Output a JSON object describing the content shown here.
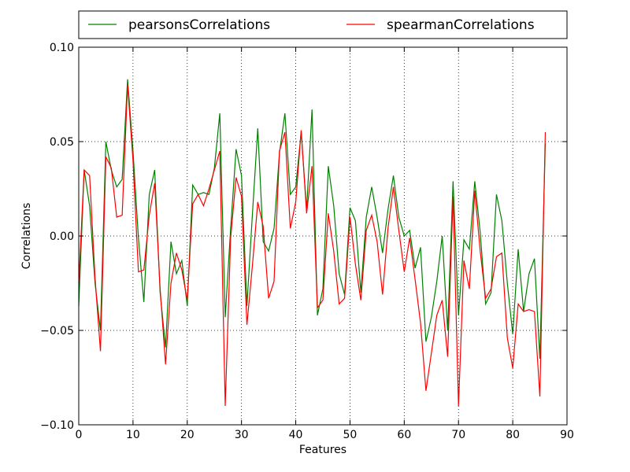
{
  "chart_data": {
    "type": "line",
    "title": "",
    "xlabel": "Features",
    "ylabel": "Correlations",
    "xlim": [
      0,
      90
    ],
    "ylim": [
      -0.1,
      0.1
    ],
    "xticks": [
      0,
      10,
      20,
      30,
      40,
      50,
      60,
      70,
      80,
      90
    ],
    "yticks": [
      -0.1,
      -0.05,
      0.0,
      0.05,
      0.1
    ],
    "xtick_labels": [
      "0",
      "10",
      "20",
      "30",
      "40",
      "50",
      "60",
      "70",
      "80",
      "90"
    ],
    "ytick_labels": [
      "−0.10",
      "−0.05",
      "0.00",
      "0.05",
      "0.10"
    ],
    "grid": true,
    "legend_position": "top, above plot",
    "series": [
      {
        "name": "pearsonsCorrelations",
        "color": "#008000",
        "values": [
          -0.037,
          0.035,
          0.016,
          -0.025,
          -0.05,
          0.05,
          0.035,
          0.026,
          0.03,
          0.083,
          0.045,
          -0.001,
          -0.035,
          0.022,
          0.035,
          -0.03,
          -0.059,
          -0.003,
          -0.02,
          -0.013,
          -0.037,
          0.027,
          0.022,
          0.023,
          0.022,
          0.036,
          0.065,
          -0.043,
          0.004,
          0.046,
          0.032,
          -0.037,
          0.011,
          0.057,
          -0.003,
          -0.008,
          0.004,
          0.044,
          0.065,
          0.022,
          0.026,
          0.055,
          0.014,
          0.067,
          -0.042,
          -0.028,
          0.037,
          0.016,
          -0.02,
          -0.031,
          0.015,
          0.008,
          -0.03,
          0.01,
          0.026,
          0.01,
          -0.009,
          0.014,
          0.032,
          0.01,
          0.0,
          0.003,
          -0.017,
          -0.006,
          -0.056,
          -0.043,
          -0.024,
          0.0,
          -0.05,
          0.029,
          -0.042,
          -0.002,
          -0.007,
          0.029,
          0.002,
          -0.036,
          -0.03,
          0.022,
          0.008,
          -0.025,
          -0.052,
          -0.007,
          -0.04,
          -0.02,
          -0.012,
          -0.065,
          0.049
        ]
      },
      {
        "name": "spearmanCorrelations",
        "color": "#ff0000",
        "values": [
          -0.025,
          0.035,
          0.032,
          -0.022,
          -0.061,
          0.042,
          0.036,
          0.01,
          0.011,
          0.08,
          0.04,
          -0.019,
          -0.018,
          0.011,
          0.028,
          -0.028,
          -0.068,
          -0.025,
          -0.009,
          -0.018,
          -0.034,
          0.017,
          0.022,
          0.016,
          0.025,
          0.035,
          0.045,
          -0.09,
          -0.001,
          0.031,
          0.021,
          -0.047,
          -0.016,
          0.018,
          0.005,
          -0.033,
          -0.024,
          0.045,
          0.055,
          0.004,
          0.018,
          0.056,
          0.012,
          0.037,
          -0.038,
          -0.034,
          0.012,
          -0.008,
          -0.036,
          -0.033,
          0.01,
          -0.015,
          -0.034,
          0.003,
          0.011,
          -0.003,
          -0.031,
          0.004,
          0.026,
          0.003,
          -0.019,
          -0.001,
          -0.023,
          -0.046,
          -0.082,
          -0.062,
          -0.042,
          -0.034,
          -0.064,
          0.021,
          -0.09,
          -0.013,
          -0.028,
          0.024,
          -0.008,
          -0.033,
          -0.028,
          -0.011,
          -0.009,
          -0.054,
          -0.07,
          -0.036,
          -0.04,
          -0.039,
          -0.04,
          -0.085,
          0.055
        ]
      }
    ]
  }
}
